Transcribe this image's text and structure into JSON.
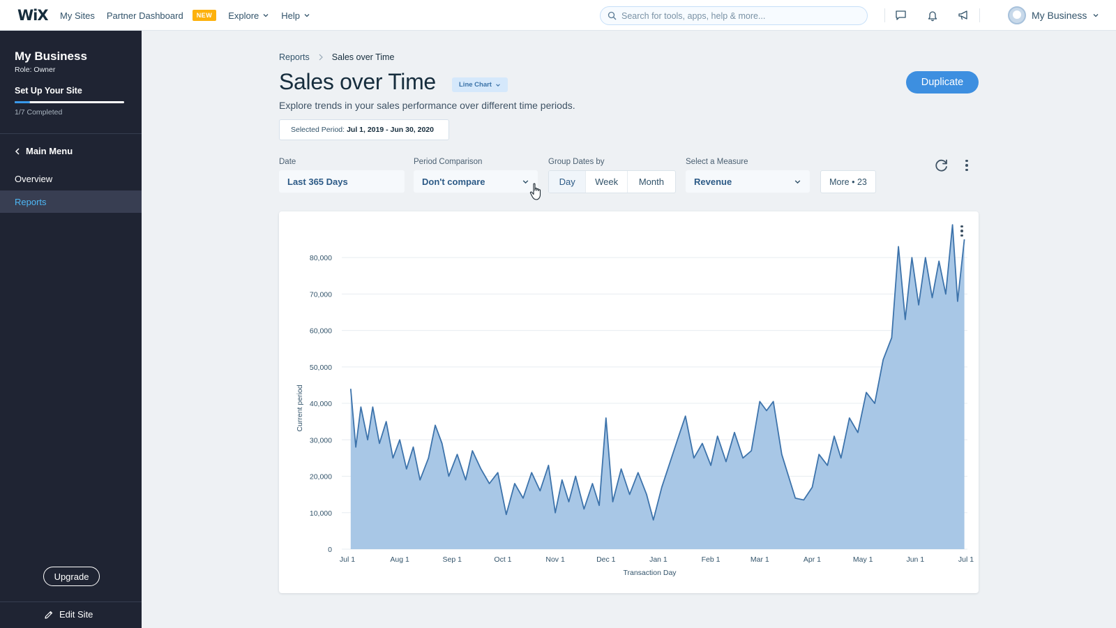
{
  "topbar": {
    "logo": "WiX",
    "nav": [
      {
        "label": "My Sites"
      },
      {
        "label": "Partner Dashboard",
        "badge": "NEW"
      },
      {
        "label": "Explore"
      },
      {
        "label": "Help"
      }
    ],
    "search_placeholder": "Search for tools, apps, help & more...",
    "icons": [
      "chat-icon",
      "bell-icon",
      "megaphone-icon"
    ],
    "account_label": "My Business"
  },
  "sidebar": {
    "site_name": "My Business",
    "role": "Role: Owner",
    "setup_label": "Set Up Your Site",
    "setup_progress": 0.14,
    "setup_completed": "1/7 Completed",
    "main_menu": "Main Menu",
    "items": [
      {
        "label": "Overview",
        "active": false
      },
      {
        "label": "Reports",
        "active": true
      }
    ],
    "upgrade_label": "Upgrade",
    "edit_site_label": "Edit Site"
  },
  "page": {
    "breadcrumb": [
      "Reports",
      "Sales over Time"
    ],
    "title": "Sales over Time",
    "chart_type_label": "Line Chart",
    "subtitle": "Explore trends in your sales performance over different time periods.",
    "selected_period_label": "Selected Period:",
    "selected_period_value": "Jul 1, 2019 - Jun 30, 2020",
    "duplicate_label": "Duplicate"
  },
  "controls": {
    "date": {
      "label": "Date",
      "value": "Last 365 Days"
    },
    "period_comparison": {
      "label": "Period Comparison",
      "value": "Don't compare"
    },
    "group_dates": {
      "label": "Group Dates by",
      "options": [
        "Day",
        "Week",
        "Month"
      ],
      "selected": "Day"
    },
    "measure": {
      "label": "Select a Measure",
      "value": "Revenue"
    },
    "more_label": "More • 23"
  },
  "colors": {
    "accent": "#3d8fe0",
    "sidebar_bg": "#1f2433",
    "line": "#3d73ab",
    "area": "#a8c7e6"
  },
  "chart_data": {
    "type": "area",
    "title": "",
    "xlabel": "Transaction Day",
    "ylabel": "Current period",
    "ylim": [
      0,
      85000
    ],
    "yticks": [
      0,
      10000,
      20000,
      30000,
      40000,
      50000,
      60000,
      70000,
      80000
    ],
    "ytick_labels": [
      "0",
      "10,000",
      "20,000",
      "30,000",
      "40,000",
      "50,000",
      "60,000",
      "70,000",
      "80,000"
    ],
    "xtick_labels": [
      "Jul 1",
      "Aug 1",
      "Sep 1",
      "Oct 1",
      "Nov 1",
      "Dec 1",
      "Jan 1",
      "Feb 1",
      "Mar 1",
      "Apr 1",
      "May 1",
      "Jun 1",
      "Jul 1"
    ],
    "xtick_dates": [
      "2019-07-01",
      "2019-08-01",
      "2019-09-01",
      "2019-10-01",
      "2019-11-01",
      "2019-12-01",
      "2020-01-01",
      "2020-02-01",
      "2020-03-01",
      "2020-04-01",
      "2020-05-01",
      "2020-06-01",
      "2020-07-01"
    ],
    "grid": true,
    "series": [
      {
        "values": [
          [
            "2019-07-03",
            44000
          ],
          [
            "2019-07-06",
            28000
          ],
          [
            "2019-07-09",
            39000
          ],
          [
            "2019-07-13",
            30000
          ],
          [
            "2019-07-16",
            39000
          ],
          [
            "2019-07-20",
            29000
          ],
          [
            "2019-07-24",
            35000
          ],
          [
            "2019-07-28",
            25000
          ],
          [
            "2019-08-01",
            30000
          ],
          [
            "2019-08-05",
            22000
          ],
          [
            "2019-08-09",
            28000
          ],
          [
            "2019-08-13",
            19000
          ],
          [
            "2019-08-18",
            25000
          ],
          [
            "2019-08-22",
            34000
          ],
          [
            "2019-08-26",
            29000
          ],
          [
            "2019-08-30",
            20000
          ],
          [
            "2019-09-04",
            26000
          ],
          [
            "2019-09-09",
            19000
          ],
          [
            "2019-09-13",
            27000
          ],
          [
            "2019-09-18",
            22000
          ],
          [
            "2019-09-23",
            18000
          ],
          [
            "2019-09-28",
            21000
          ],
          [
            "2019-10-03",
            9500
          ],
          [
            "2019-10-08",
            18000
          ],
          [
            "2019-10-13",
            14000
          ],
          [
            "2019-10-18",
            21000
          ],
          [
            "2019-10-23",
            16000
          ],
          [
            "2019-10-28",
            23000
          ],
          [
            "2019-11-01",
            10000
          ],
          [
            "2019-11-05",
            19000
          ],
          [
            "2019-11-09",
            13000
          ],
          [
            "2019-11-13",
            20000
          ],
          [
            "2019-11-18",
            11000
          ],
          [
            "2019-11-23",
            18000
          ],
          [
            "2019-11-27",
            12000
          ],
          [
            "2019-12-01",
            36000
          ],
          [
            "2019-12-05",
            13000
          ],
          [
            "2019-12-10",
            22000
          ],
          [
            "2019-12-15",
            15000
          ],
          [
            "2019-12-20",
            21000
          ],
          [
            "2019-12-25",
            15000
          ],
          [
            "2019-12-29",
            8000
          ],
          [
            "2020-01-03",
            17000
          ],
          [
            "2020-01-08",
            24000
          ],
          [
            "2020-01-13",
            31000
          ],
          [
            "2020-01-17",
            36500
          ],
          [
            "2020-01-22",
            25000
          ],
          [
            "2020-01-27",
            29000
          ],
          [
            "2020-02-01",
            23000
          ],
          [
            "2020-02-05",
            31000
          ],
          [
            "2020-02-10",
            24000
          ],
          [
            "2020-02-15",
            32000
          ],
          [
            "2020-02-20",
            25000
          ],
          [
            "2020-02-25",
            27000
          ],
          [
            "2020-03-01",
            40500
          ],
          [
            "2020-03-05",
            38000
          ],
          [
            "2020-03-09",
            40500
          ],
          [
            "2020-03-14",
            26000
          ],
          [
            "2020-03-18",
            20000
          ],
          [
            "2020-03-22",
            14000
          ],
          [
            "2020-03-27",
            13500
          ],
          [
            "2020-04-01",
            17000
          ],
          [
            "2020-04-05",
            26000
          ],
          [
            "2020-04-10",
            23000
          ],
          [
            "2020-04-14",
            31000
          ],
          [
            "2020-04-18",
            25000
          ],
          [
            "2020-04-23",
            36000
          ],
          [
            "2020-04-28",
            32000
          ],
          [
            "2020-05-03",
            43000
          ],
          [
            "2020-05-08",
            40000
          ],
          [
            "2020-05-13",
            52000
          ],
          [
            "2020-05-18",
            58000
          ],
          [
            "2020-05-22",
            83000
          ],
          [
            "2020-05-26",
            63000
          ],
          [
            "2020-05-30",
            80000
          ],
          [
            "2020-06-03",
            67000
          ],
          [
            "2020-06-07",
            80000
          ],
          [
            "2020-06-11",
            69000
          ],
          [
            "2020-06-15",
            79000
          ],
          [
            "2020-06-19",
            70000
          ],
          [
            "2020-06-23",
            89000
          ],
          [
            "2020-06-26",
            68000
          ],
          [
            "2020-06-30",
            85000
          ]
        ]
      }
    ]
  }
}
